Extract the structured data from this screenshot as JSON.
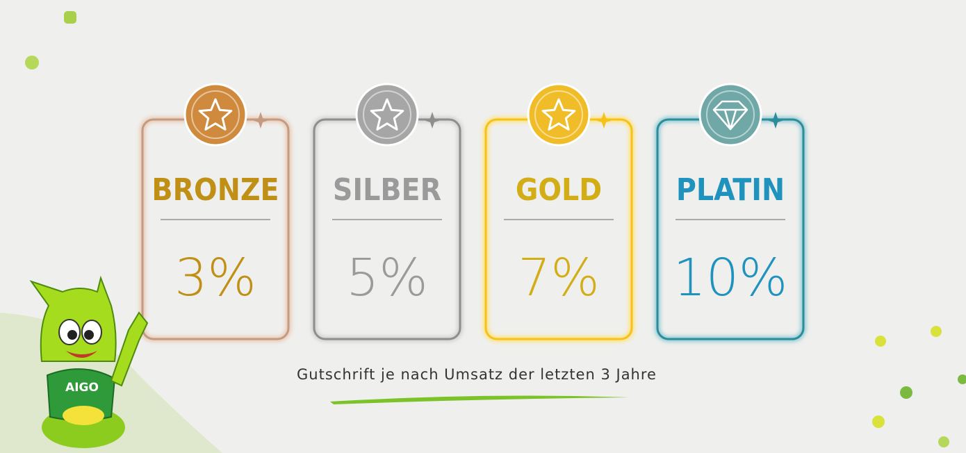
{
  "tiers": [
    {
      "name": "BRONZE",
      "percent": "3%"
    },
    {
      "name": "SILBER",
      "percent": "5%"
    },
    {
      "name": "GOLD",
      "percent": "7%"
    },
    {
      "name": "PLATIN",
      "percent": "10%"
    }
  ],
  "caption": "Gutschrift je nach Umsatz der letzten 3 Jahre",
  "mascot": {
    "shirt": "AIGO"
  }
}
